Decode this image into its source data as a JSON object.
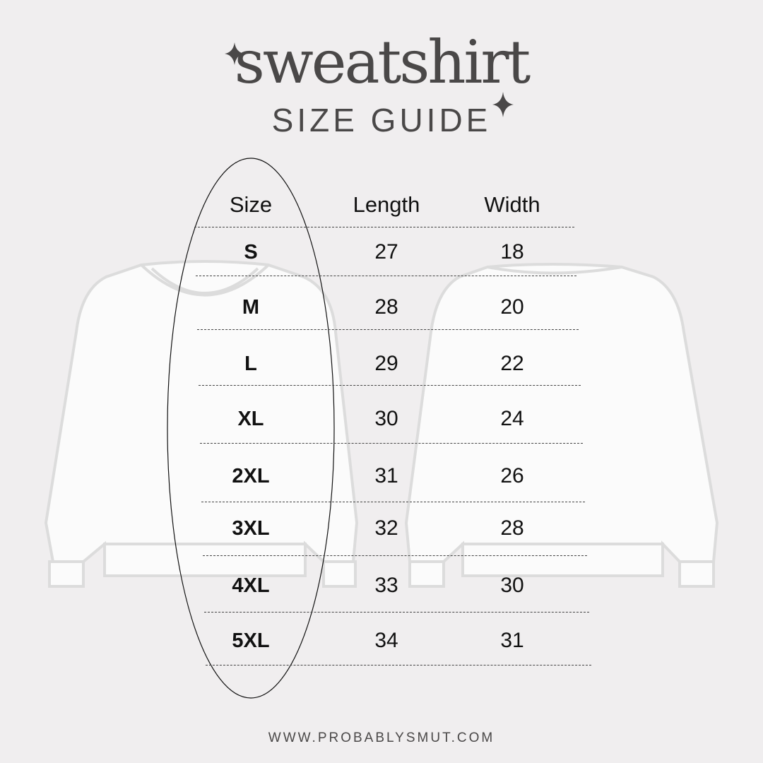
{
  "header": {
    "title": "sweatshirt",
    "subtitle": "SIZE GUIDE"
  },
  "table": {
    "columns": [
      "Size",
      "Length",
      "Width"
    ],
    "rows": [
      {
        "size": "S",
        "length": "27",
        "width": "18"
      },
      {
        "size": "M",
        "length": "28",
        "width": "20"
      },
      {
        "size": "L",
        "length": "29",
        "width": "22"
      },
      {
        "size": "XL",
        "length": "30",
        "width": "24"
      },
      {
        "size": "2XL",
        "length": "31",
        "width": "26"
      },
      {
        "size": "3XL",
        "length": "32",
        "width": "28"
      },
      {
        "size": "4XL",
        "length": "33",
        "width": "30"
      },
      {
        "size": "5XL",
        "length": "34",
        "width": "31"
      }
    ]
  },
  "footer": {
    "url": "WWW.PROBABLYSMUT.COM"
  },
  "colors": {
    "background": "#f0eeef",
    "text": "#4a4848"
  },
  "icons": [
    "sparkle-icon",
    "sweatshirt-front-illustration",
    "sweatshirt-back-illustration"
  ]
}
